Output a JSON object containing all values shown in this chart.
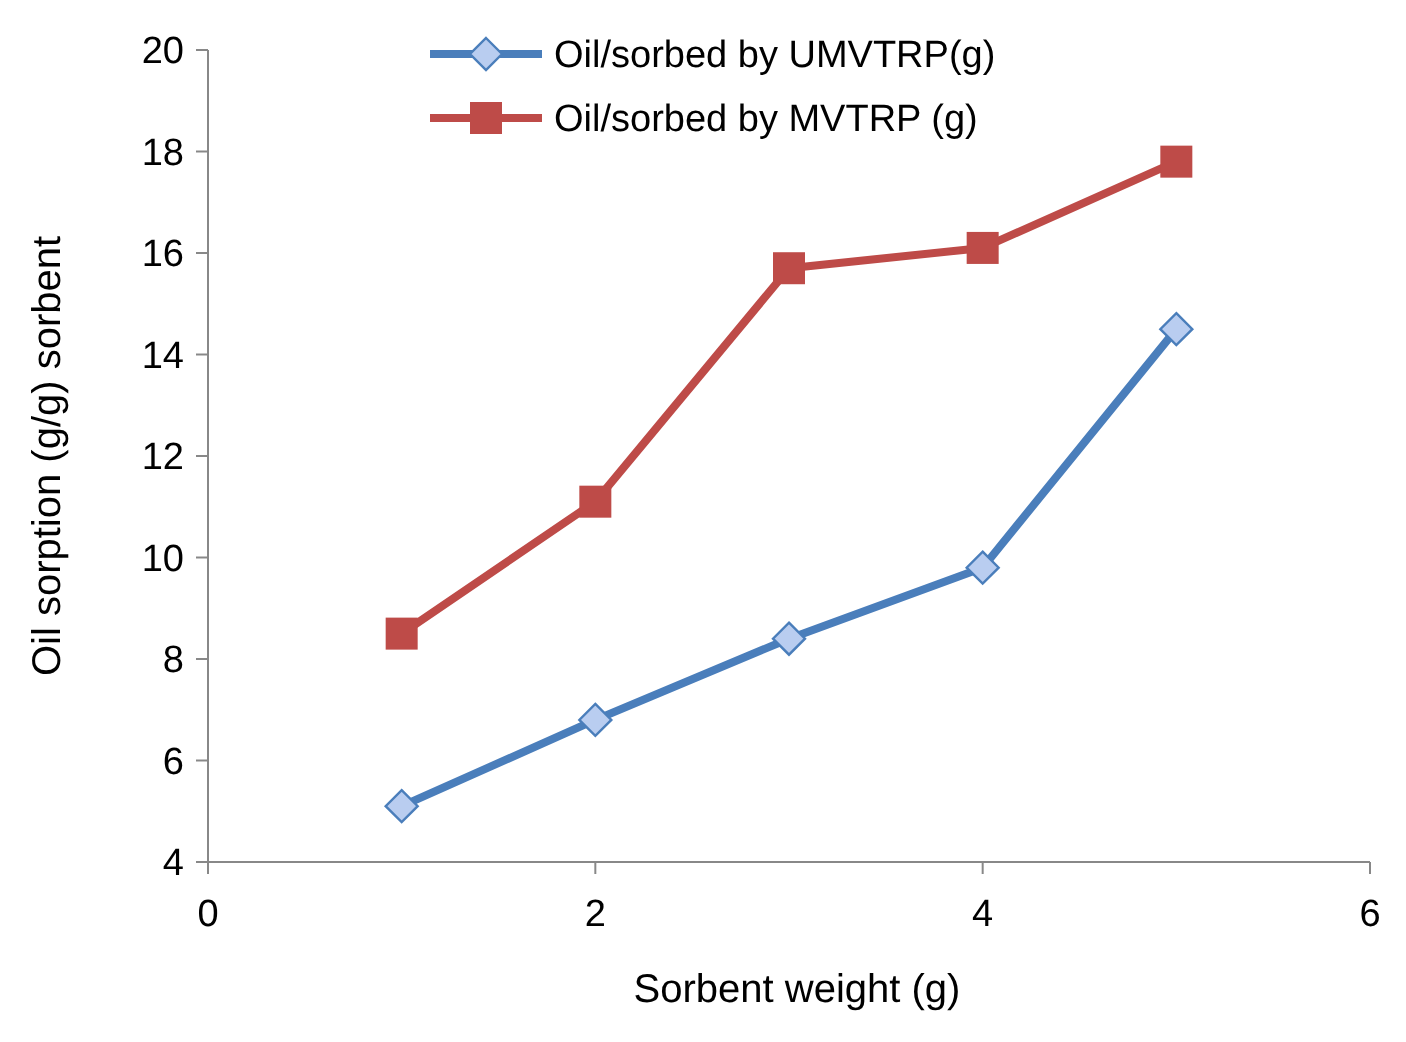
{
  "chart_data": {
    "type": "line",
    "xlabel": "Sorbent weight (g)",
    "ylabel": "Oil sorption (g/g) sorbent",
    "x": [
      1,
      2,
      3,
      4,
      5
    ],
    "series": [
      {
        "name": "Oil/sorbed by UMVTRP(g)",
        "color": "#4a7ebb",
        "marker": "diamond",
        "values": [
          5.1,
          6.8,
          8.4,
          9.8,
          14.5
        ]
      },
      {
        "name": "Oil/sorbed by MVTRP (g)",
        "color": "#be4b48",
        "marker": "square",
        "values": [
          8.5,
          11.1,
          15.7,
          16.1,
          17.8
        ]
      }
    ],
    "xlim": [
      0,
      6
    ],
    "xticks": [
      0,
      2,
      4,
      6
    ],
    "ylim": [
      4,
      20
    ],
    "yticks": [
      4,
      6,
      8,
      10,
      12,
      14,
      16,
      18,
      20
    ],
    "grid": false,
    "legend": "top",
    "line_style": "solid"
  }
}
